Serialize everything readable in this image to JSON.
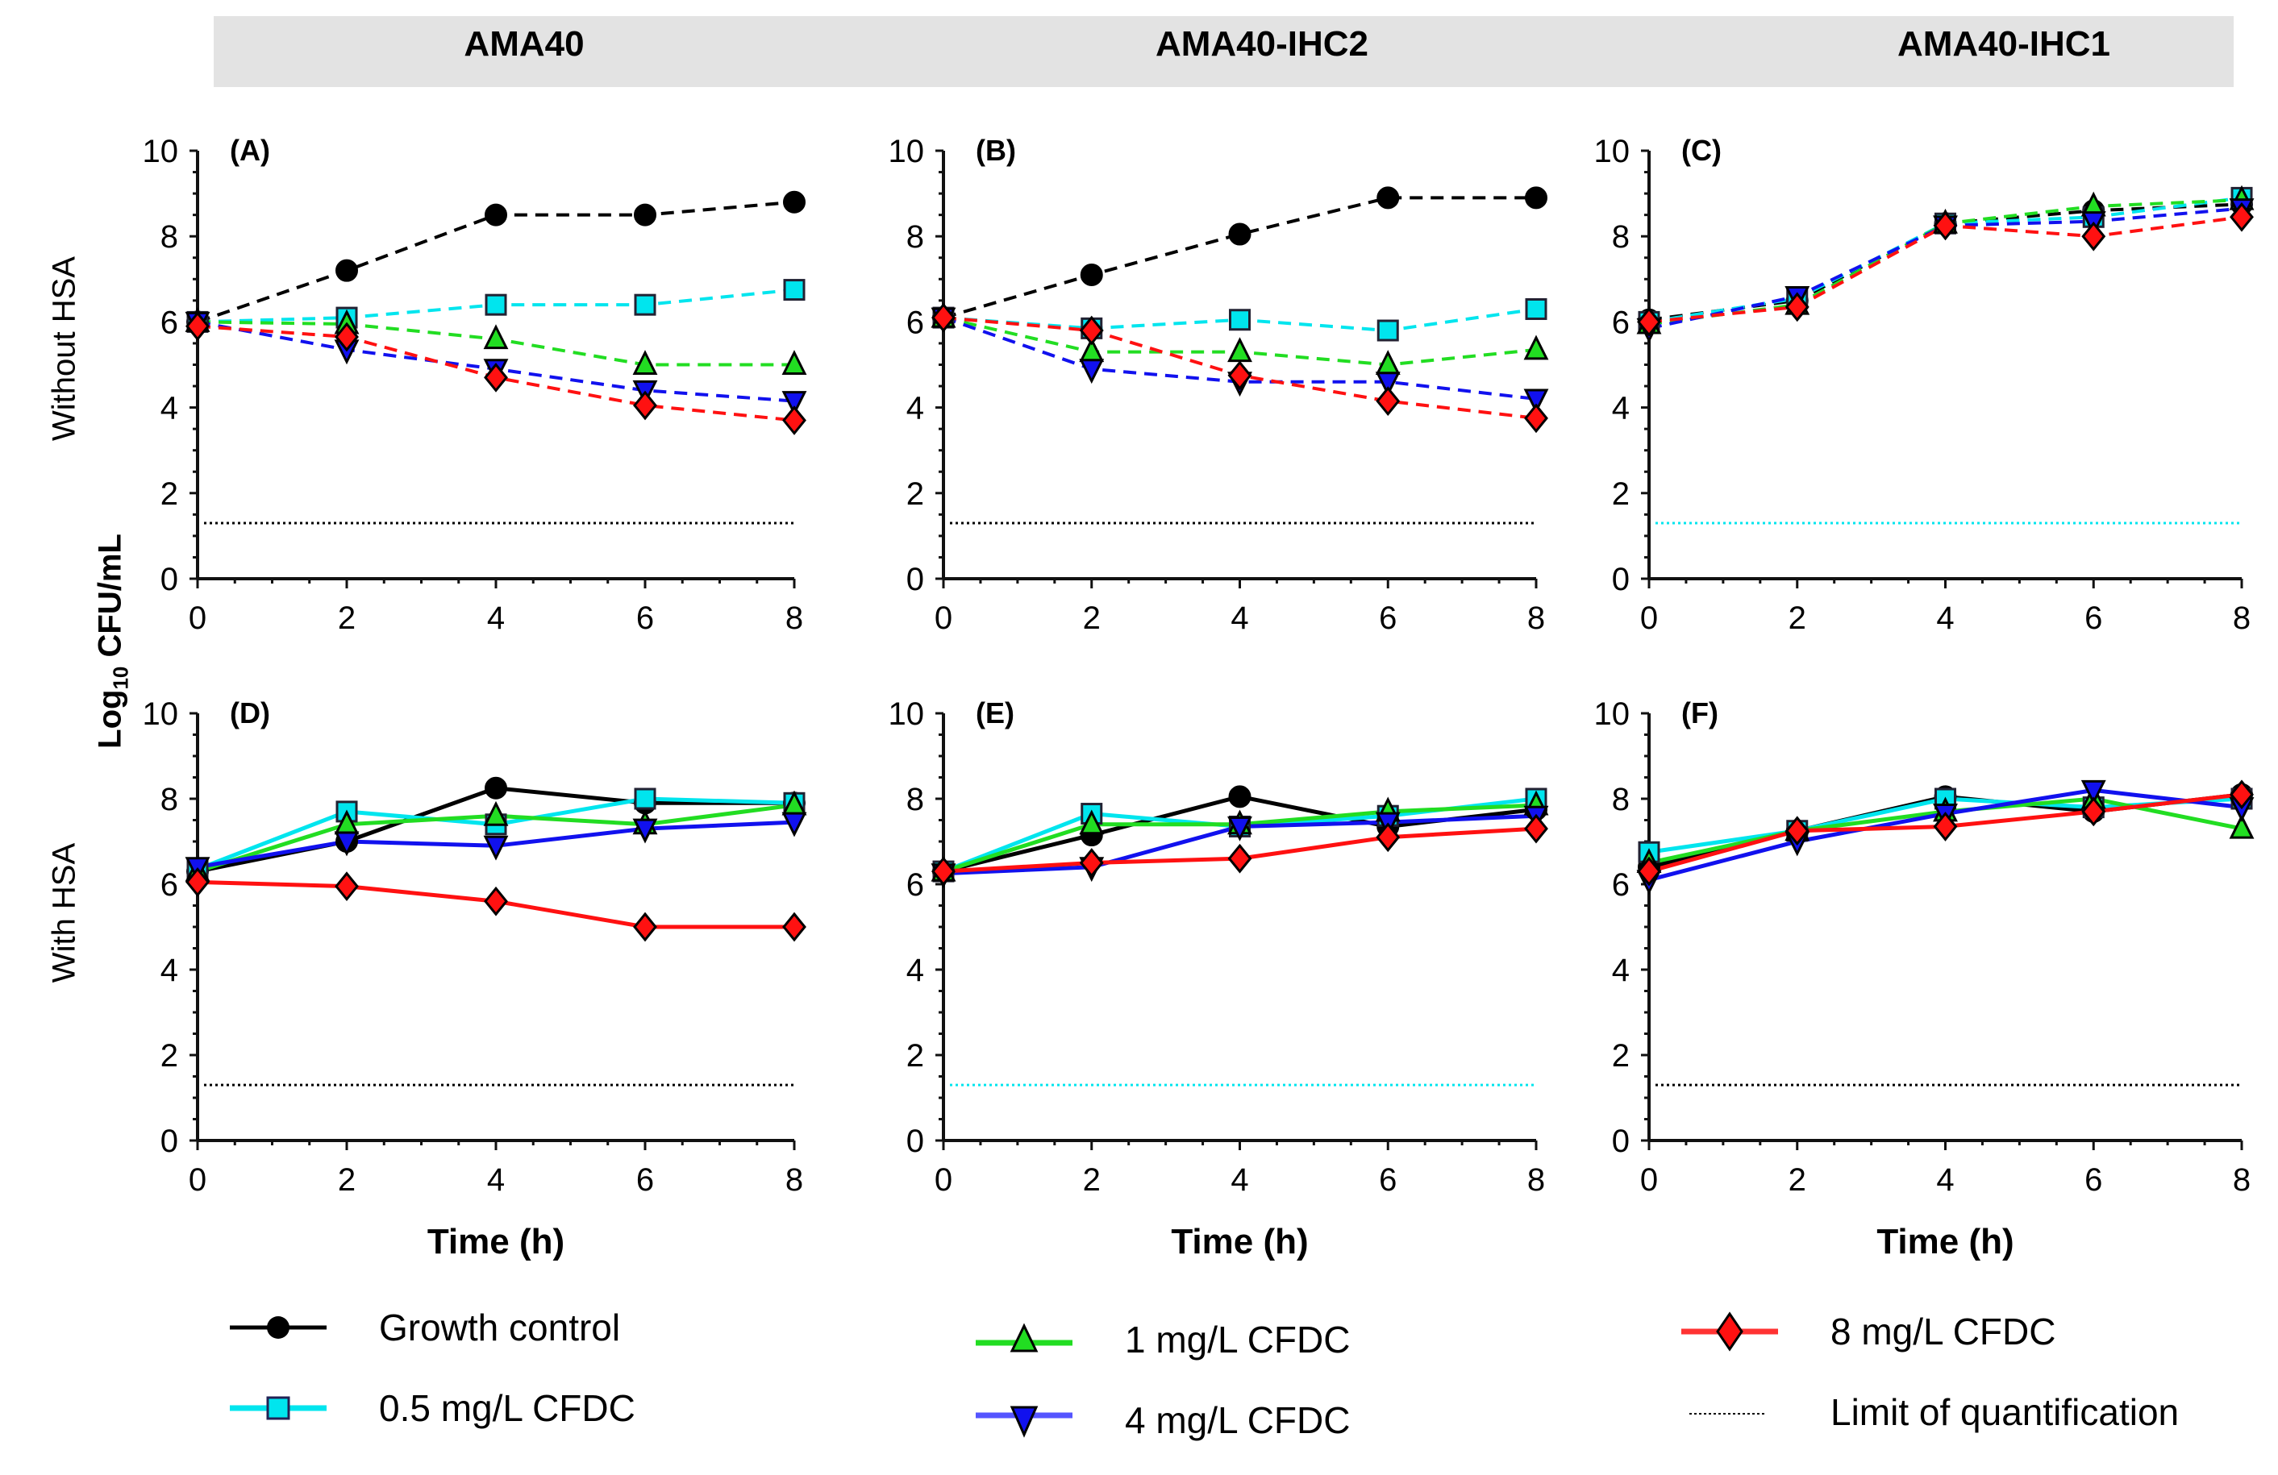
{
  "header": {
    "strains": [
      "AMA40",
      "AMA40-IHC2",
      "AMA40-IHC1"
    ]
  },
  "rows": [
    "Without HSA",
    "With HSA"
  ],
  "y_axis_label": {
    "prefix": "Log",
    "sub": "10",
    "suffix": " CFU/mL"
  },
  "x_axis_label": "Time (h)",
  "legend": [
    {
      "key": "growth",
      "label": "Growth control",
      "color": "#000000",
      "marker": "circle"
    },
    {
      "key": "c05",
      "label": "0.5 mg/L CFDC",
      "color": "#00e5ee",
      "marker": "square"
    },
    {
      "key": "c1",
      "label": "1 mg/L CFDC",
      "color": "#22dd22",
      "marker": "triangle-up"
    },
    {
      "key": "c4",
      "label": "4 mg/L CFDC",
      "color": "#1111ee",
      "marker": "triangle-down"
    },
    {
      "key": "c8",
      "label": "8 mg/L CFDC",
      "color": "#ff1111",
      "marker": "diamond"
    },
    {
      "key": "loq",
      "label": "Limit of quantification",
      "color": "#000000",
      "marker": "dotted-line"
    }
  ],
  "chart_data": [
    {
      "type": "line",
      "panel": "A",
      "title": "(A)",
      "strain": "AMA40",
      "condition": "Without HSA",
      "line_style": "dashed",
      "x": [
        0,
        2,
        4,
        6,
        8
      ],
      "xlim": [
        0,
        8
      ],
      "ylim": [
        0,
        10
      ],
      "xticks": [
        "0",
        "2",
        "4",
        "6",
        "8"
      ],
      "yticks": [
        "0",
        "2",
        "4",
        "6",
        "8",
        "10"
      ],
      "xlabel": "",
      "ylabel": "Log10 CFU/mL",
      "loq": {
        "value": 1.3,
        "color": "#000000"
      },
      "series": [
        {
          "name": "Growth control",
          "values": [
            6.0,
            7.2,
            8.5,
            8.5,
            8.8
          ]
        },
        {
          "name": "0.5 mg/L CFDC",
          "values": [
            6.0,
            6.1,
            6.4,
            6.4,
            6.75
          ]
        },
        {
          "name": "1 mg/L CFDC",
          "values": [
            6.0,
            5.95,
            5.6,
            5.0,
            5.0
          ]
        },
        {
          "name": "4 mg/L CFDC",
          "values": [
            6.0,
            5.35,
            4.9,
            4.4,
            4.15
          ]
        },
        {
          "name": "8 mg/L CFDC",
          "values": [
            5.9,
            5.65,
            4.7,
            4.05,
            3.7
          ]
        }
      ]
    },
    {
      "type": "line",
      "panel": "B",
      "title": "(B)",
      "strain": "AMA40-IHC2",
      "condition": "Without HSA",
      "line_style": "dashed",
      "x": [
        0,
        2,
        4,
        6,
        8
      ],
      "xlim": [
        0,
        8
      ],
      "ylim": [
        0,
        10
      ],
      "xticks": [
        "0",
        "2",
        "4",
        "6",
        "8"
      ],
      "yticks": [
        "0",
        "2",
        "4",
        "6",
        "8",
        "10"
      ],
      "xlabel": "",
      "ylabel": "",
      "loq": {
        "value": 1.3,
        "color": "#000000"
      },
      "series": [
        {
          "name": "Growth control",
          "values": [
            6.1,
            7.1,
            8.05,
            8.9,
            8.9
          ]
        },
        {
          "name": "0.5 mg/L CFDC",
          "values": [
            6.1,
            5.85,
            6.05,
            5.8,
            6.3
          ]
        },
        {
          "name": "1 mg/L CFDC",
          "values": [
            6.1,
            5.3,
            5.3,
            5.0,
            5.35
          ]
        },
        {
          "name": "4 mg/L CFDC",
          "values": [
            6.1,
            4.9,
            4.6,
            4.6,
            4.2
          ]
        },
        {
          "name": "8 mg/L CFDC",
          "values": [
            6.1,
            5.8,
            4.75,
            4.15,
            3.75
          ]
        }
      ]
    },
    {
      "type": "line",
      "panel": "C",
      "title": "(C)",
      "strain": "AMA40-IHC1",
      "condition": "Without HSA",
      "line_style": "dashed",
      "x": [
        0,
        2,
        4,
        6,
        8
      ],
      "xlim": [
        0,
        8
      ],
      "ylim": [
        0,
        10
      ],
      "xticks": [
        "0",
        "2",
        "4",
        "6",
        "8"
      ],
      "yticks": [
        "0",
        "2",
        "4",
        "6",
        "8",
        "10"
      ],
      "xlabel": "",
      "ylabel": "",
      "loq": {
        "value": 1.3,
        "color": "#00e5ee"
      },
      "series": [
        {
          "name": "Growth control",
          "values": [
            6.05,
            6.5,
            8.3,
            8.6,
            8.75
          ]
        },
        {
          "name": "0.5 mg/L CFDC",
          "values": [
            6.0,
            6.55,
            8.3,
            8.45,
            8.9
          ]
        },
        {
          "name": "1 mg/L CFDC",
          "values": [
            5.95,
            6.4,
            8.3,
            8.7,
            8.85
          ]
        },
        {
          "name": "4 mg/L CFDC",
          "values": [
            5.85,
            6.6,
            8.25,
            8.35,
            8.65
          ]
        },
        {
          "name": "8 mg/L CFDC",
          "values": [
            6.0,
            6.35,
            8.25,
            8.0,
            8.45
          ]
        }
      ]
    },
    {
      "type": "line",
      "panel": "D",
      "title": "(D)",
      "strain": "AMA40",
      "condition": "With HSA",
      "line_style": "solid",
      "x": [
        0,
        2,
        4,
        6,
        8
      ],
      "xlim": [
        0,
        8
      ],
      "ylim": [
        0,
        10
      ],
      "xticks": [
        "0",
        "2",
        "4",
        "6",
        "8"
      ],
      "yticks": [
        "0",
        "2",
        "4",
        "6",
        "8",
        "10"
      ],
      "xlabel": "Time (h)",
      "ylabel": "Log10 CFU/mL",
      "loq": {
        "value": 1.3,
        "color": "#000000"
      },
      "series": [
        {
          "name": "Growth control",
          "values": [
            6.3,
            7.0,
            8.25,
            7.9,
            7.9
          ]
        },
        {
          "name": "0.5 mg/L CFDC",
          "values": [
            6.35,
            7.7,
            7.4,
            8.0,
            7.9
          ]
        },
        {
          "name": "1 mg/L CFDC",
          "values": [
            6.3,
            7.4,
            7.6,
            7.4,
            7.85
          ]
        },
        {
          "name": "4 mg/L CFDC",
          "values": [
            6.4,
            7.0,
            6.9,
            7.3,
            7.45
          ]
        },
        {
          "name": "8 mg/L CFDC",
          "values": [
            6.05,
            5.95,
            5.6,
            5.0,
            5.0
          ]
        }
      ]
    },
    {
      "type": "line",
      "panel": "E",
      "title": "(E)",
      "strain": "AMA40-IHC2",
      "condition": "With HSA",
      "line_style": "solid",
      "x": [
        0,
        2,
        4,
        6,
        8
      ],
      "xlim": [
        0,
        8
      ],
      "ylim": [
        0,
        10
      ],
      "xticks": [
        "0",
        "2",
        "4",
        "6",
        "8"
      ],
      "yticks": [
        "0",
        "2",
        "4",
        "6",
        "8",
        "10"
      ],
      "xlabel": "Time (h)",
      "ylabel": "",
      "loq": {
        "value": 1.3,
        "color": "#00e5ee"
      },
      "series": [
        {
          "name": "Growth control",
          "values": [
            6.3,
            7.15,
            8.05,
            7.35,
            7.75
          ]
        },
        {
          "name": "0.5 mg/L CFDC",
          "values": [
            6.3,
            7.65,
            7.35,
            7.6,
            8.0
          ]
        },
        {
          "name": "1 mg/L CFDC",
          "values": [
            6.3,
            7.4,
            7.4,
            7.7,
            7.85
          ]
        },
        {
          "name": "4 mg/L CFDC",
          "values": [
            6.25,
            6.4,
            7.35,
            7.45,
            7.6
          ]
        },
        {
          "name": "8 mg/L CFDC",
          "values": [
            6.3,
            6.5,
            6.6,
            7.1,
            7.3
          ]
        }
      ]
    },
    {
      "type": "line",
      "panel": "F",
      "title": "(F)",
      "strain": "AMA40-IHC1",
      "condition": "With HSA",
      "line_style": "solid",
      "x": [
        0,
        2,
        4,
        6,
        8
      ],
      "xlim": [
        0,
        8
      ],
      "ylim": [
        0,
        10
      ],
      "xticks": [
        "0",
        "2",
        "4",
        "6",
        "8"
      ],
      "yticks": [
        "0",
        "2",
        "4",
        "6",
        "8",
        "10"
      ],
      "xlabel": "Time (h)",
      "ylabel": "",
      "loq": {
        "value": 1.3,
        "color": "#000000"
      },
      "series": [
        {
          "name": "Growth control",
          "values": [
            6.4,
            7.25,
            8.05,
            7.7,
            8.1
          ]
        },
        {
          "name": "0.5 mg/L CFDC",
          "values": [
            6.75,
            7.25,
            8.0,
            7.8,
            8.0
          ]
        },
        {
          "name": "1 mg/L CFDC",
          "values": [
            6.5,
            7.25,
            7.7,
            8.0,
            7.3
          ]
        },
        {
          "name": "4 mg/L CFDC",
          "values": [
            6.1,
            7.0,
            7.65,
            8.2,
            7.8
          ]
        },
        {
          "name": "8 mg/L CFDC",
          "values": [
            6.3,
            7.25,
            7.35,
            7.7,
            8.1
          ]
        }
      ]
    }
  ]
}
